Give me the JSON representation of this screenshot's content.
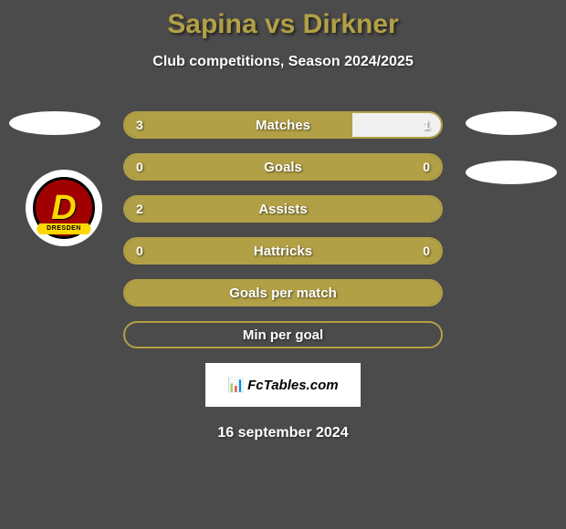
{
  "title": "Sapina vs Dirkner",
  "subtitle": "Club competitions, Season 2024/2025",
  "date": "16 september 2024",
  "brand": "FcTables.com",
  "logo_text": "D",
  "logo_banner": "DRESDEN",
  "colors": {
    "bg": "#4b4b4b",
    "accent": "#b2a046",
    "bar_right_fill": "#f0f0f0",
    "text": "#ffffff"
  },
  "bars": [
    {
      "label": "Matches",
      "left_val": "3",
      "right_val": "1",
      "left_pct": 72,
      "right_pct": 28,
      "show_vals": true
    },
    {
      "label": "Goals",
      "left_val": "0",
      "right_val": "0",
      "left_pct": 100,
      "right_pct": 0,
      "show_vals": true
    },
    {
      "label": "Assists",
      "left_val": "2",
      "right_val": "",
      "left_pct": 100,
      "right_pct": 0,
      "show_vals": true
    },
    {
      "label": "Hattricks",
      "left_val": "0",
      "right_val": "0",
      "left_pct": 100,
      "right_pct": 0,
      "show_vals": true
    },
    {
      "label": "Goals per match",
      "left_val": "",
      "right_val": "",
      "left_pct": 100,
      "right_pct": 0,
      "show_vals": false
    },
    {
      "label": "Min per goal",
      "left_val": "",
      "right_val": "",
      "left_pct": 0,
      "right_pct": 0,
      "show_vals": false
    }
  ]
}
